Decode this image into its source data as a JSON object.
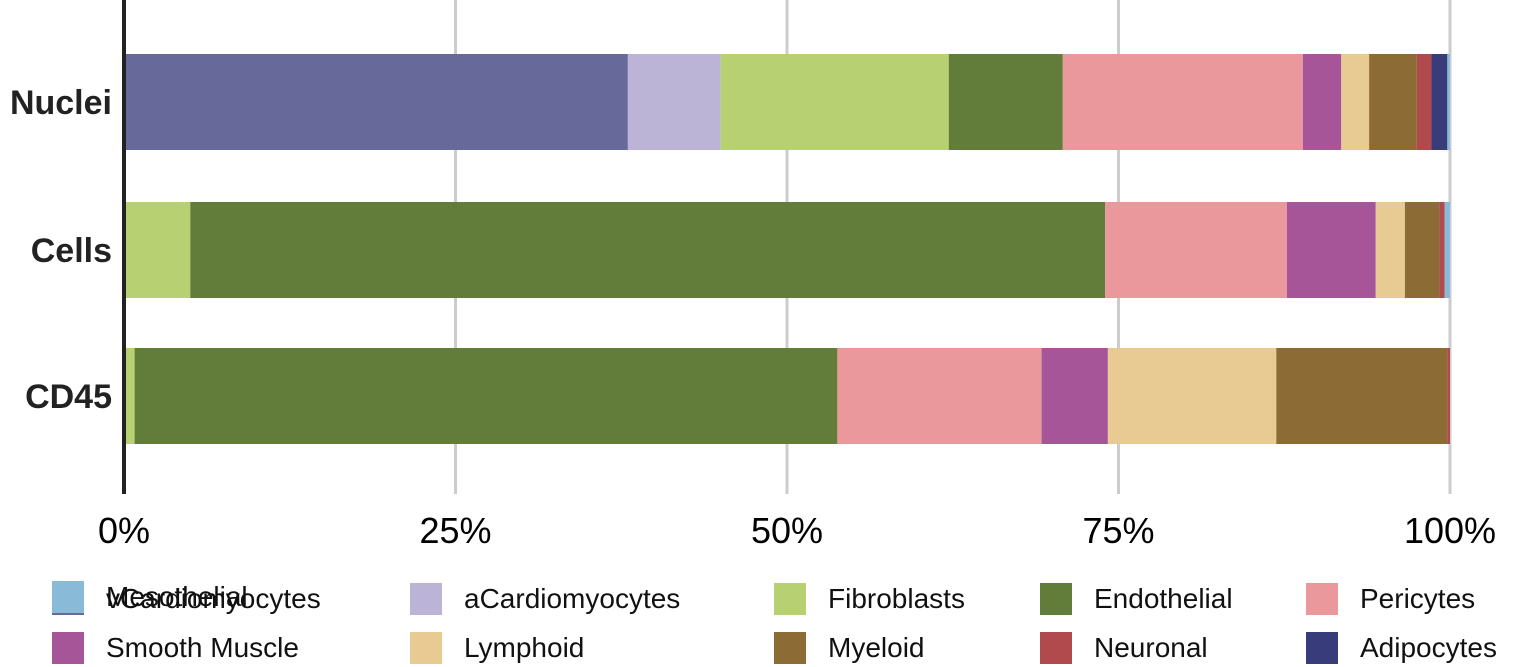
{
  "chart_data": {
    "type": "bar",
    "orientation": "horizontal",
    "stacked": true,
    "normalized": true,
    "categories": [
      "Nuclei",
      "Cells",
      "CD45"
    ],
    "x_ticks": [
      "0%",
      "25%",
      "50%",
      "75%",
      "100%"
    ],
    "xlim": [
      0,
      100
    ],
    "grid": true,
    "legend_position": "bottom",
    "series": [
      {
        "name": "vCardiomyocytes",
        "color": "#68699b",
        "values": [
          38.0,
          0.0,
          0.0
        ]
      },
      {
        "name": "aCardiomyocytes",
        "color": "#bbb4d7",
        "values": [
          7.0,
          0.0,
          0.0
        ]
      },
      {
        "name": "Fibroblasts",
        "color": "#b7d072",
        "values": [
          17.2,
          5.0,
          0.8
        ]
      },
      {
        "name": "Endothelial",
        "color": "#627c3a",
        "values": [
          8.6,
          69.0,
          53.0
        ]
      },
      {
        "name": "Pericytes",
        "color": "#eb989d",
        "values": [
          18.1,
          13.7,
          15.4
        ]
      },
      {
        "name": "Smooth Muscle",
        "color": "#a55598",
        "values": [
          2.9,
          6.7,
          5.0
        ]
      },
      {
        "name": "Lymphoid",
        "color": "#e8cb93",
        "values": [
          2.1,
          2.2,
          12.7
        ]
      },
      {
        "name": "Myeloid",
        "color": "#8c6c34",
        "values": [
          3.6,
          2.6,
          12.9
        ]
      },
      {
        "name": "Neuronal",
        "color": "#b04a4d",
        "values": [
          1.1,
          0.4,
          0.2
        ]
      },
      {
        "name": "Adipocytes",
        "color": "#393c7a",
        "values": [
          1.2,
          0.0,
          0.0
        ]
      },
      {
        "name": "Mesothelial",
        "color": "#89bbd8",
        "values": [
          0.2,
          0.4,
          0.0
        ]
      }
    ]
  }
}
